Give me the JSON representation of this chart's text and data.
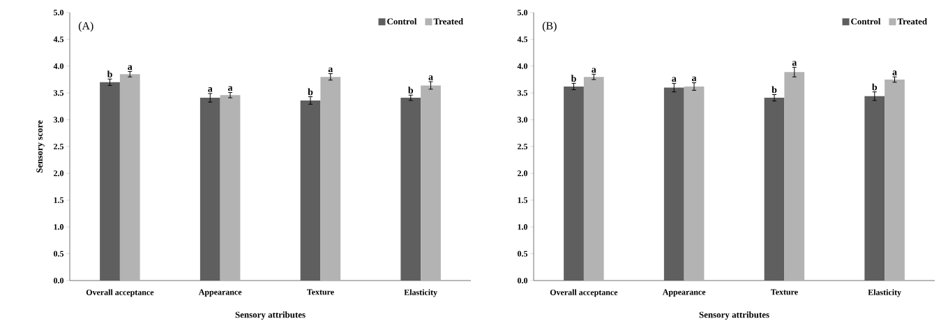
{
  "chart_data": [
    {
      "type": "bar",
      "title": "(A)",
      "xlabel": "Sensory attributes",
      "ylabel": "Sensory  score",
      "categories": [
        "Overall acceptance",
        "Appearance",
        "Texture",
        "Elasticity"
      ],
      "series": [
        {
          "name": "Control",
          "color": "#5f5f5f",
          "values": [
            3.7,
            3.41,
            3.36,
            3.41
          ],
          "errors": [
            0.06,
            0.08,
            0.07,
            0.05
          ],
          "value_labels": [
            "b",
            "a",
            "b",
            "b"
          ]
        },
        {
          "name": "Treated",
          "color": "#b3b3b3",
          "values": [
            3.85,
            3.46,
            3.8,
            3.64
          ],
          "errors": [
            0.05,
            0.05,
            0.06,
            0.07
          ],
          "value_labels": [
            "a",
            "a",
            "a",
            "a"
          ]
        }
      ],
      "ylim": [
        0,
        5
      ],
      "yticks": [
        {
          "value": 0,
          "label": "0.0"
        },
        0.5,
        {
          "value": 1,
          "label": "1.0"
        },
        1.5,
        {
          "value": 2,
          "label": "2.0"
        },
        2.5,
        {
          "value": 3,
          "label": "3.0"
        },
        3.5,
        {
          "value": 4,
          "label": "4.0"
        },
        4.5,
        {
          "value": 5,
          "label": "5.0"
        }
      ],
      "legend": "top right",
      "grid": false
    },
    {
      "type": "bar",
      "title": "(B)",
      "xlabel": "Sensory attributes",
      "categories": [
        "Overall acceptance",
        "Appearance",
        "Texture",
        "Elasticity"
      ],
      "series": [
        {
          "name": "Control",
          "color": "#5f5f5f",
          "values": [
            3.62,
            3.6,
            3.41,
            3.44
          ],
          "errors": [
            0.06,
            0.08,
            0.06,
            0.08
          ],
          "value_labels": [
            "b",
            "a",
            "b",
            "b"
          ]
        },
        {
          "name": "Treated",
          "color": "#b3b3b3",
          "values": [
            3.8,
            3.62,
            3.89,
            3.75
          ],
          "errors": [
            0.05,
            0.07,
            0.09,
            0.05
          ],
          "value_labels": [
            "a",
            "a",
            "a",
            "a"
          ]
        }
      ],
      "ylim": [
        0,
        5
      ],
      "yticks": [
        {
          "value": 0,
          "label": "0.0"
        },
        0.5,
        {
          "value": 1,
          "label": "1.0"
        },
        1.5,
        {
          "value": 2,
          "label": "2.0"
        },
        2.5,
        {
          "value": 3,
          "label": "3.0"
        },
        3.5,
        {
          "value": 4,
          "label": "4.0"
        },
        4.5,
        {
          "value": 5,
          "label": "5.0"
        }
      ],
      "legend": "top right",
      "grid": false
    }
  ]
}
